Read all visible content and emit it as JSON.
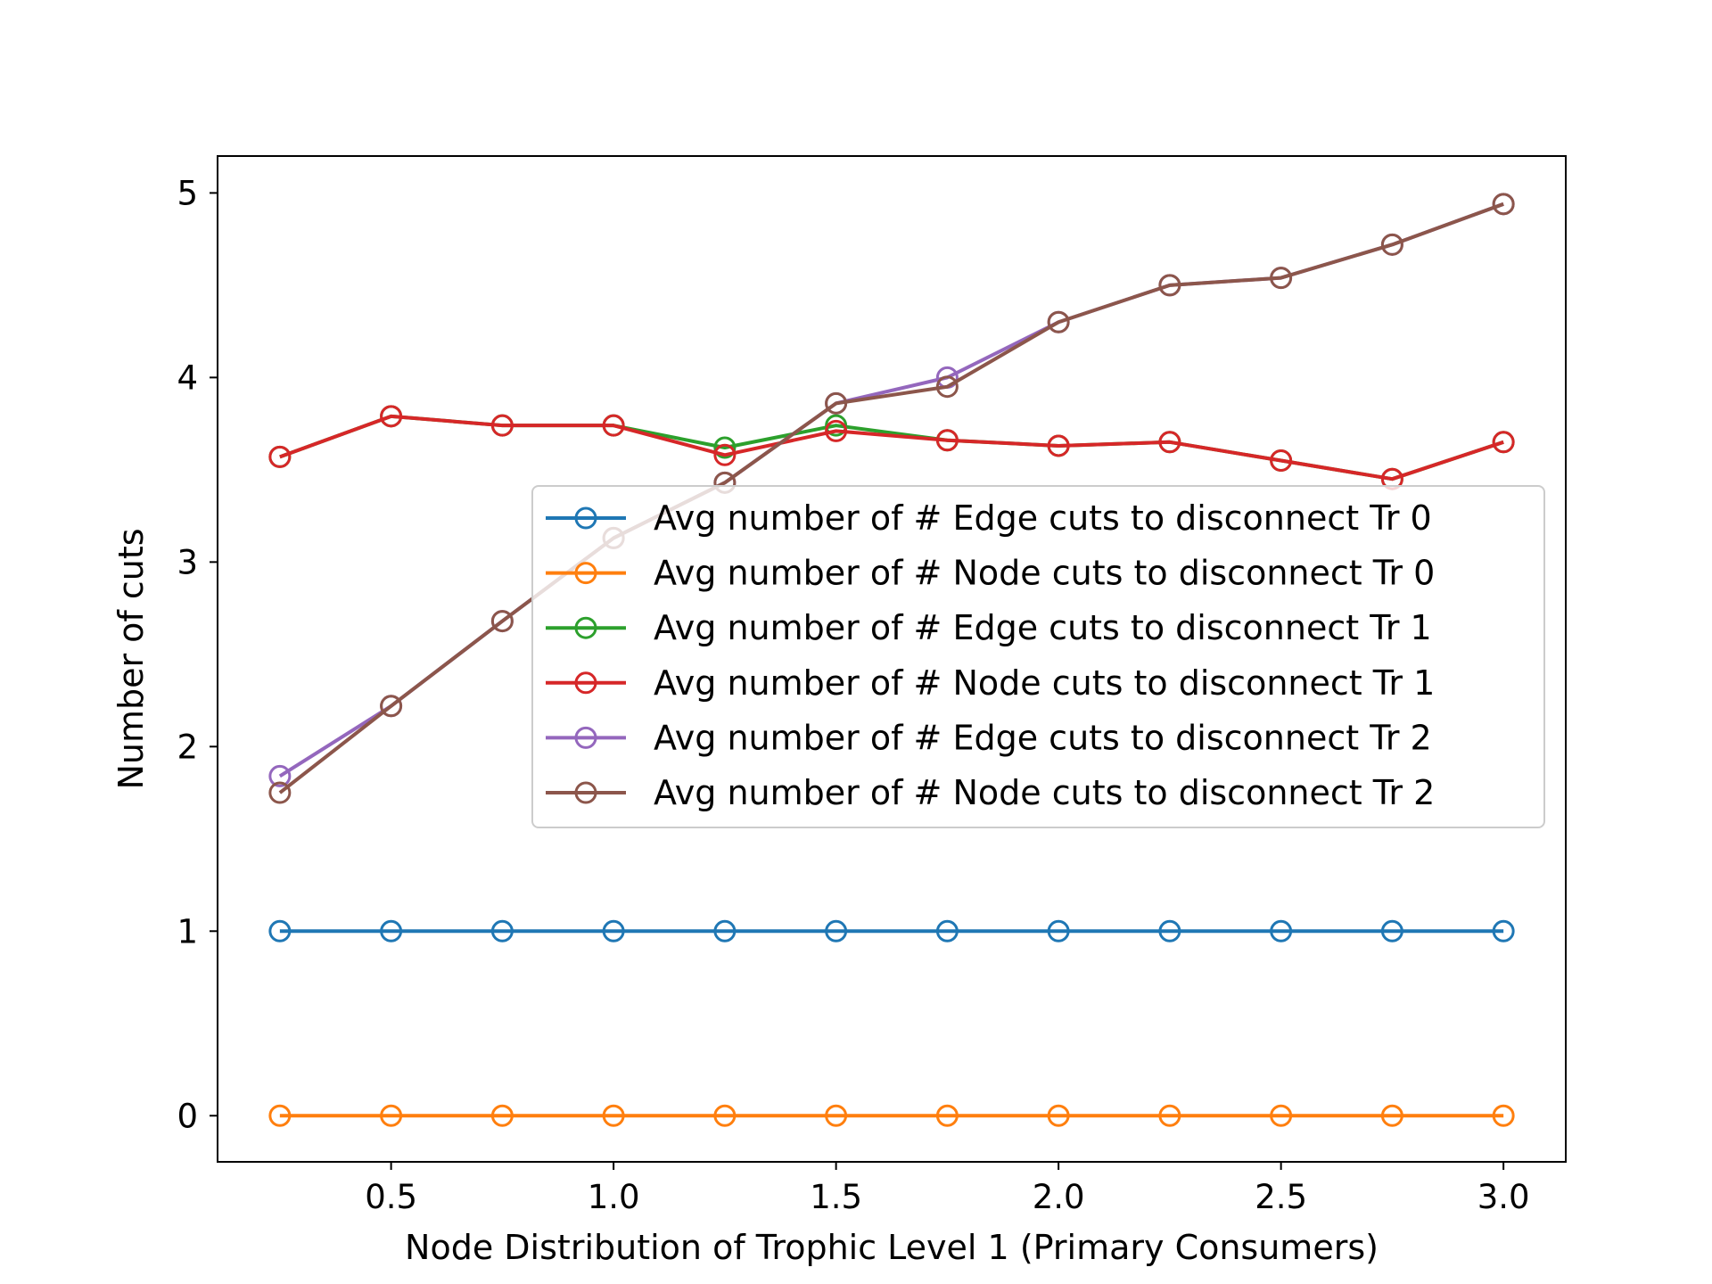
{
  "chart_data": {
    "type": "line",
    "title": "",
    "xlabel": "Node Distribution of Trophic Level 1 (Primary Consumers)",
    "ylabel": "Number of cuts",
    "xlim": [
      0.11,
      3.14
    ],
    "ylim": [
      -0.25,
      5.2
    ],
    "x_ticks": [
      0.5,
      1.0,
      1.5,
      2.0,
      2.5,
      3.0
    ],
    "x_tick_labels": [
      "0.5",
      "1.0",
      "1.5",
      "2.0",
      "2.5",
      "3.0"
    ],
    "y_ticks": [
      0,
      1,
      2,
      3,
      4,
      5
    ],
    "y_tick_labels": [
      "0",
      "1",
      "2",
      "3",
      "4",
      "5"
    ],
    "grid": false,
    "legend_position": "center-right",
    "marker": "open-circle",
    "x": [
      0.25,
      0.5,
      0.75,
      1.0,
      1.25,
      1.5,
      1.75,
      2.0,
      2.25,
      2.5,
      2.75,
      3.0
    ],
    "series": [
      {
        "name": "Avg number of # Edge cuts to disconnect Tr 0",
        "color": "#1f77b4",
        "values": [
          1,
          1,
          1,
          1,
          1,
          1,
          1,
          1,
          1,
          1,
          1,
          1
        ]
      },
      {
        "name": "Avg number of # Node cuts to disconnect Tr 0",
        "color": "#ff7f0e",
        "values": [
          0,
          0,
          0,
          0,
          0,
          0,
          0,
          0,
          0,
          0,
          0,
          0
        ]
      },
      {
        "name": "Avg number of # Edge cuts to disconnect Tr 1",
        "color": "#2ca02c",
        "values": [
          3.57,
          3.79,
          3.74,
          3.74,
          3.62,
          3.74,
          3.66,
          3.63,
          3.65,
          3.55,
          3.45,
          3.65
        ]
      },
      {
        "name": "Avg number of # Node cuts to disconnect Tr 1",
        "color": "#d62728",
        "values": [
          3.57,
          3.79,
          3.74,
          3.74,
          3.58,
          3.71,
          3.66,
          3.63,
          3.65,
          3.55,
          3.45,
          3.65
        ]
      },
      {
        "name": "Avg number of # Edge cuts to disconnect Tr 2",
        "color": "#9467bd",
        "values": [
          1.84,
          2.22,
          2.68,
          3.13,
          3.43,
          3.86,
          4.0,
          4.3,
          4.5,
          4.54,
          4.72,
          4.94
        ]
      },
      {
        "name": "Avg number of # Node cuts to disconnect Tr 2",
        "color": "#8c564b",
        "values": [
          1.75,
          2.22,
          2.68,
          3.13,
          3.43,
          3.86,
          3.95,
          4.3,
          4.5,
          4.54,
          4.72,
          4.94
        ]
      }
    ]
  }
}
